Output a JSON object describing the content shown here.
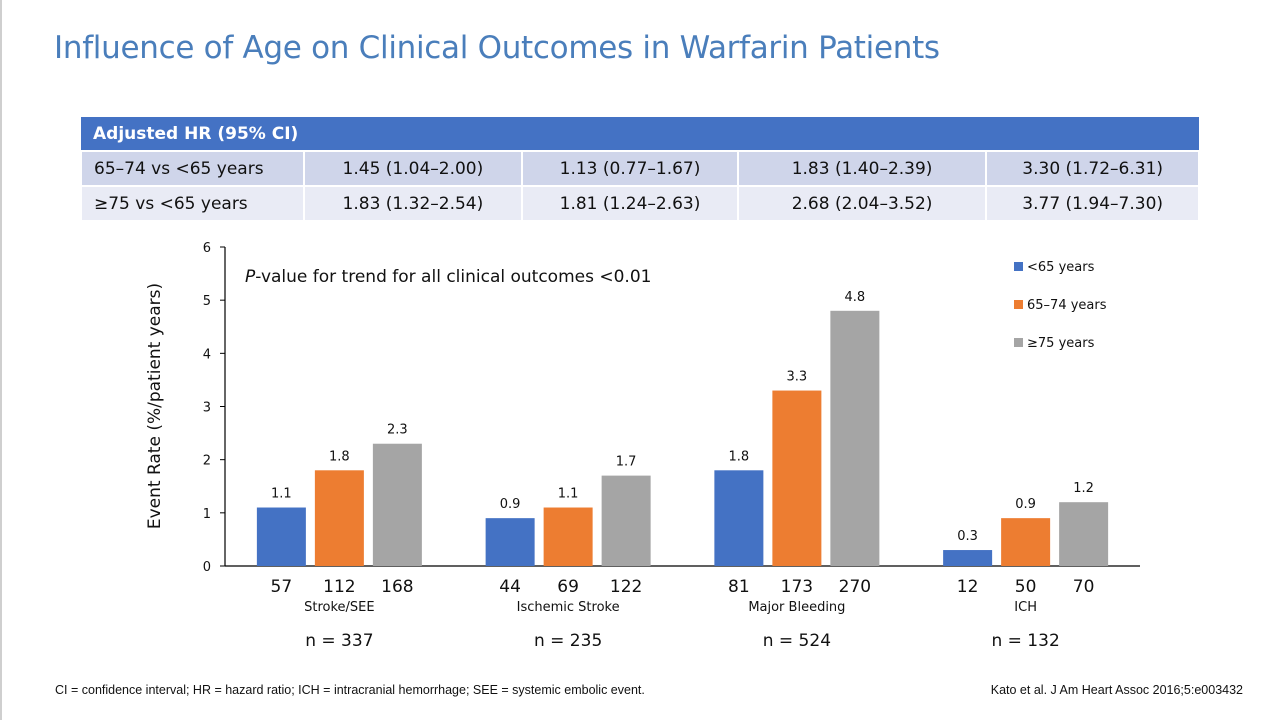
{
  "slide": {
    "title": "Influence of Age on Clinical Outcomes in Warfarin Patients",
    "footnote": "CI = confidence interval; HR = hazard ratio; ICH = intracranial hemorrhage; SEE = systemic embolic event.",
    "citation": "Kato et al. J Am Heart Assoc 2016;5:e003432"
  },
  "hr_table": {
    "header": "Adjusted HR (95% CI)",
    "rows": [
      {
        "label": "65–74 vs <65 years",
        "cells": [
          "1.45 (1.04–2.00)",
          "1.13 (0.77–1.67)",
          "1.83 (1.40–2.39)",
          "3.30 (1.72–6.31)"
        ]
      },
      {
        "label": "≥75 vs <65 years",
        "cells": [
          "1.83 (1.32–2.54)",
          "1.81 (1.24–2.63)",
          "2.68 (2.04–3.52)",
          "3.77 (1.94–7.30)"
        ]
      }
    ]
  },
  "chart_data": {
    "type": "bar",
    "ylabel": "Event Rate (%/patient years)",
    "ylim": [
      0,
      6
    ],
    "yticks": [
      0,
      1,
      2,
      3,
      4,
      5,
      6
    ],
    "annotation": {
      "italic": "P",
      "text": "-value for trend for all clinical outcomes <0.01"
    },
    "categories": [
      "Stroke/SEE",
      "Ischemic Stroke",
      "Major Bleeding",
      "ICH"
    ],
    "category_totals": [
      "n = 337",
      "n = 235",
      "n = 524",
      "n = 132"
    ],
    "legend_position": "top-right",
    "series": [
      {
        "name": "<65 years",
        "color": "#4472c4",
        "values": [
          1.1,
          0.9,
          1.8,
          0.3
        ],
        "labels": [
          "1.1",
          "0.9",
          "1.8",
          "0.3"
        ],
        "n": [
          "57",
          "44",
          "81",
          "12"
        ]
      },
      {
        "name": "65–74 years",
        "color": "#ed7d31",
        "values": [
          1.8,
          1.1,
          3.3,
          0.9
        ],
        "labels": [
          "1.8",
          "1.1",
          "3.3",
          "0.9"
        ],
        "n": [
          "112",
          "69",
          "173",
          "50"
        ]
      },
      {
        "name": "≥75 years",
        "color": "#a5a5a5",
        "values": [
          2.3,
          1.7,
          4.8,
          1.2
        ],
        "labels": [
          "2.3",
          "1.7",
          "4.8",
          "1.2"
        ],
        "n": [
          "168",
          "122",
          "270",
          "70"
        ]
      }
    ]
  }
}
